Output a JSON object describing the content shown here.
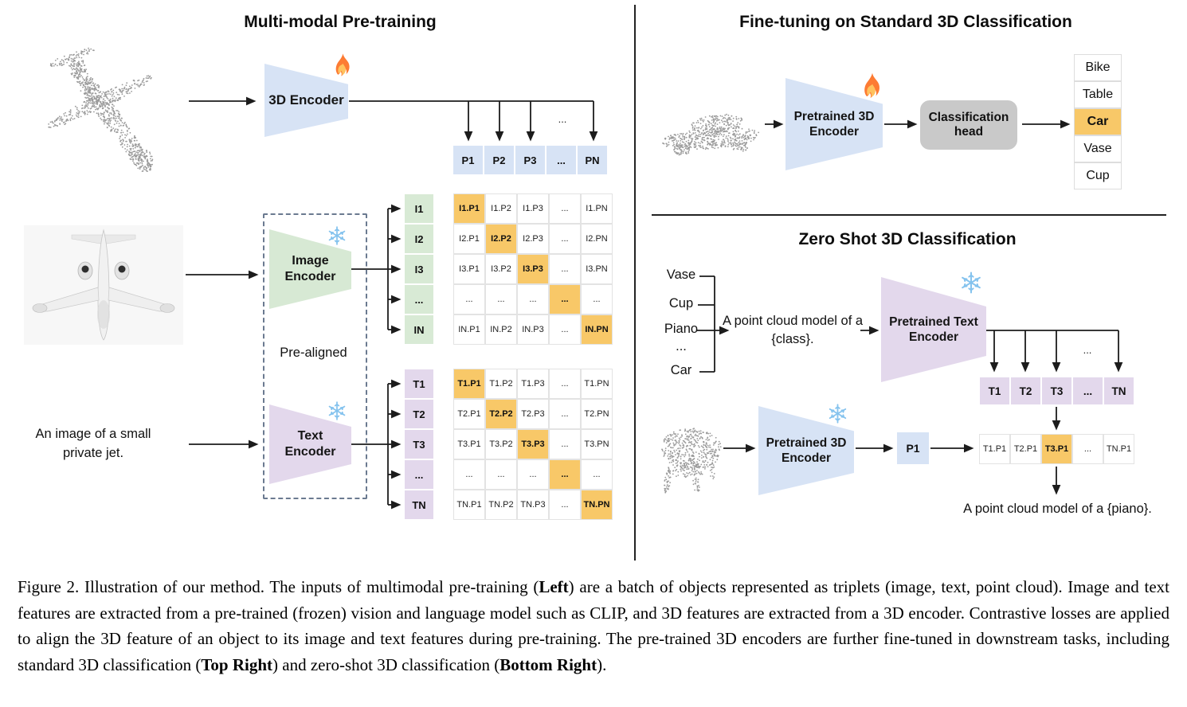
{
  "left_panel": {
    "title": "Multi-modal Pre-training",
    "encoder_3d": {
      "label": "3D Encoder",
      "status_icon": "fire-icon"
    },
    "image_encoder": {
      "label": "Image Encoder",
      "status_icon": "snowflake-icon"
    },
    "text_encoder": {
      "label": "Text Encoder",
      "status_icon": "snowflake-icon"
    },
    "pre_aligned_label": "Pre-aligned",
    "text_input": "An image of a small private jet.",
    "p_row": [
      "P1",
      "P2",
      "P3",
      "...",
      "PN"
    ],
    "p_row_ellipsis": "...",
    "image_rows": [
      "I1",
      "I2",
      "I3",
      "...",
      "IN"
    ],
    "image_matrix": [
      [
        "I1.P1",
        "I1.P2",
        "I1.P3",
        "...",
        "I1.PN"
      ],
      [
        "I2.P1",
        "I2.P2",
        "I2.P3",
        "...",
        "I2.PN"
      ],
      [
        "I3.P1",
        "I3.P2",
        "I3.P3",
        "...",
        "I3.PN"
      ],
      [
        "...",
        "...",
        "...",
        "...",
        "..."
      ],
      [
        "IN.P1",
        "IN.P2",
        "IN.P3",
        "...",
        "IN.PN"
      ]
    ],
    "text_rows": [
      "T1",
      "T2",
      "T3",
      "...",
      "TN"
    ],
    "text_matrix": [
      [
        "T1.P1",
        "T1.P2",
        "T1.P3",
        "...",
        "T1.PN"
      ],
      [
        "T2.P1",
        "T2.P2",
        "T2.P3",
        "...",
        "T2.PN"
      ],
      [
        "T3.P1",
        "T3.P2",
        "T3.P3",
        "...",
        "T3.PN"
      ],
      [
        "...",
        "...",
        "...",
        "...",
        "..."
      ],
      [
        "TN.P1",
        "TN.P2",
        "TN.P3",
        "...",
        "TN.PN"
      ]
    ]
  },
  "top_right_panel": {
    "title": "Fine-tuning on Standard 3D Classification",
    "encoder": {
      "label": "Pretrained 3D Encoder",
      "status_icon": "fire-icon"
    },
    "classification_head": "Classification head",
    "classes": [
      "Bike",
      "Table",
      "Car",
      "Vase",
      "Cup"
    ],
    "predicted_class": "Car"
  },
  "bottom_right_panel": {
    "title": "Zero Shot 3D Classification",
    "candidate_classes": [
      "Vase",
      "Cup",
      "Piano",
      "...",
      "Car"
    ],
    "prompt": "A point cloud model of a {class}.",
    "text_encoder": {
      "label": "Pretrained Text Encoder",
      "status_icon": "snowflake-icon"
    },
    "encoder_3d": {
      "label": "Pretrained 3D Encoder",
      "status_icon": "snowflake-icon"
    },
    "point_feature": "P1",
    "text_features": [
      "T1",
      "T2",
      "T3",
      "...",
      "TN"
    ],
    "t_row_ellipsis": "...",
    "similarity_row": [
      "T1.P1",
      "T2.P1",
      "T3.P1",
      "...",
      "TN.P1"
    ],
    "matched_cell": "T3.P1",
    "result_text": "A point cloud model of a {piano}."
  },
  "caption": {
    "segments": [
      {
        "text": "Figure 2. Illustration of our method. The inputs of multimodal pre-training (",
        "bold": false
      },
      {
        "text": "Left",
        "bold": true
      },
      {
        "text": ") are a batch of objects represented as triplets (image, text, point cloud).  Image and text features are extracted from a pre-trained (frozen) vision and language model such as CLIP, and 3D features are extracted from a 3D encoder.  Contrastive losses are applied to align the 3D feature of an object to its image and text features during pre-training.  The pre-trained 3D encoders are further fine-tuned in downstream tasks, including standard 3D classification (",
        "bold": false
      },
      {
        "text": "Top Right",
        "bold": true
      },
      {
        "text": ") and zero-shot 3D classification (",
        "bold": false
      },
      {
        "text": "Bottom Right",
        "bold": true
      },
      {
        "text": ").",
        "bold": false
      }
    ]
  },
  "colors": {
    "encoder_blue": "#D7E3F5",
    "image_green": "#D8EAD5",
    "text_purple": "#E3D8EC",
    "highlight_orange": "#F8C868",
    "head_gray": "#C9C9C9"
  }
}
